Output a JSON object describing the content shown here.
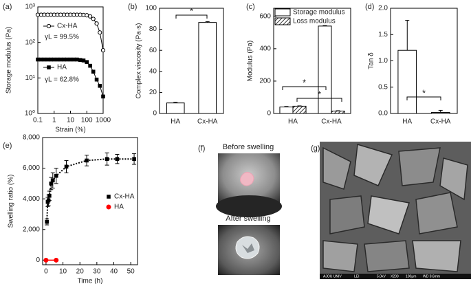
{
  "chart_data": [
    {
      "panel": "(a)",
      "type": "line",
      "log_x": true,
      "log_y": true,
      "xlabel": "Strain (%)",
      "ylabel": "Storage modulus (Pa)",
      "x": [
        0.1,
        0.16,
        0.25,
        0.4,
        0.63,
        1,
        1.6,
        2.5,
        4,
        6.3,
        10,
        16,
        25,
        40,
        63,
        100,
        160,
        250,
        400,
        630,
        1000
      ],
      "series": [
        {
          "name": "Cx-HA",
          "color": "#000000",
          "marker": "open-circle",
          "values": [
            600,
            600,
            600,
            600,
            600,
            600,
            600,
            600,
            600,
            600,
            600,
            600,
            600,
            600,
            590,
            580,
            540,
            460,
            340,
            190,
            60
          ]
        },
        {
          "name": "HA",
          "color": "#000000",
          "marker": "square",
          "values": [
            33,
            33,
            33,
            33,
            33,
            33,
            33,
            33,
            33,
            33,
            33,
            33,
            33,
            32,
            31,
            28,
            22,
            15,
            9,
            6,
            3
          ]
        }
      ],
      "annotations": [
        "γL = 99.5%",
        "γL = 62.8%"
      ],
      "xlim": [
        0.1,
        1000
      ],
      "xticks": [
        0.1,
        1,
        10,
        100,
        1000
      ],
      "ylim": [
        1,
        1000
      ],
      "yticks": [
        {
          "value": 1,
          "label": "10⁰"
        },
        {
          "value": 10,
          "label": "10¹"
        },
        {
          "value": 100,
          "label": "10²"
        },
        {
          "value": 1000,
          "label": "10³"
        }
      ]
    },
    {
      "panel": "(b)",
      "type": "bar",
      "ylabel": "Complex viscosity (Pa·s)",
      "categories": [
        "HA",
        "Cx-HA"
      ],
      "values": [
        10,
        86.5
      ],
      "errors": [
        0.6,
        0.8
      ],
      "color": "#ffffff",
      "ylim": [
        0,
        100
      ],
      "yticks": [
        0,
        20,
        40,
        60,
        80,
        100
      ],
      "significance": [
        "*"
      ]
    },
    {
      "panel": "(c)",
      "type": "grouped-bar",
      "ylabel": "Modulus (Pa)",
      "categories": [
        "HA",
        "Cx-HA"
      ],
      "series": [
        {
          "name": "Storage modulus",
          "color": "#ffffff",
          "values": [
            40,
            540
          ],
          "errors": [
            3,
            3
          ]
        },
        {
          "name": "Loss modulus",
          "color": "hatch",
          "values": [
            45,
            15
          ],
          "errors": [
            2,
            2
          ]
        }
      ],
      "ylim": [
        0,
        650
      ],
      "yticks": [
        0,
        200,
        400,
        600
      ],
      "significance": [
        "*",
        "*"
      ]
    },
    {
      "panel": "(d)",
      "type": "bar",
      "ylabel": "Tan δ",
      "categories": [
        "HA",
        "Cx-HA"
      ],
      "values": [
        1.2,
        0.02
      ],
      "errors": [
        0.57,
        0.04
      ],
      "color": "#ffffff",
      "ylim": [
        0,
        2
      ],
      "yticks": [
        {
          "value": 0,
          "label": "0.0"
        },
        {
          "value": 0.5,
          "label": "0.5"
        },
        {
          "value": 1,
          "label": "1.0"
        },
        {
          "value": 1.5,
          "label": "1.5"
        },
        {
          "value": 2,
          "label": "2.0"
        }
      ],
      "significance": [
        "*"
      ]
    },
    {
      "panel": "(e)",
      "type": "scatter",
      "xlabel": "Time (h)",
      "ylabel": "Swelling ratio (%)",
      "series": [
        {
          "name": "Cx-HA",
          "color": "#000000",
          "marker": "square",
          "line_style": "dotted",
          "x": [
            0.5,
            1,
            1.5,
            2,
            3,
            4,
            6,
            12,
            24,
            36,
            42,
            52
          ],
          "values": [
            2500,
            3800,
            3900,
            4200,
            5000,
            5200,
            5500,
            6100,
            6500,
            6600,
            6600,
            6600
          ],
          "errors": [
            200,
            300,
            350,
            300,
            400,
            500,
            500,
            400,
            350,
            400,
            300,
            350
          ]
        },
        {
          "name": "HA",
          "color": "#ff0000",
          "marker": "circle",
          "line_style": "solid",
          "x": [
            0,
            6
          ],
          "values": [
            0,
            0
          ]
        }
      ],
      "xlim": [
        -2,
        54
      ],
      "xticks": [
        0,
        10,
        20,
        30,
        40,
        50
      ],
      "ylim": [
        -300,
        8000
      ],
      "yticks": [
        0,
        {
          "value": 2000,
          "label": "2,000"
        },
        {
          "value": 4000,
          "label": "4,000"
        },
        {
          "value": 6000,
          "label": "6,000"
        },
        {
          "value": 8000,
          "label": "8,000"
        }
      ]
    }
  ],
  "figures": {
    "photos": {
      "panel": "(f)",
      "captions": [
        "Before swelling",
        "After swelling"
      ]
    },
    "sem": {
      "panel": "(g)",
      "footer": [
        "AJOU UNIV",
        "LEI",
        "5.0kV",
        "X200",
        "100μm",
        "WD 9.6mm"
      ]
    }
  }
}
